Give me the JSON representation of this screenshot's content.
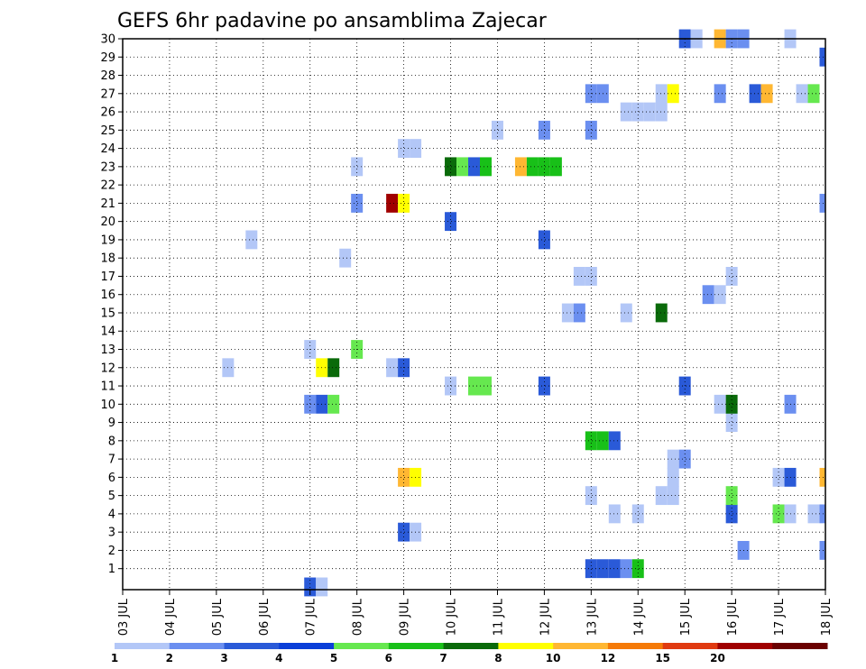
{
  "chart_data": {
    "type": "heatmap",
    "title": "GEFS 6hr padavine po ansamblima Zajecar",
    "x_tick_labels": [
      "03 JUL",
      "04 JUL",
      "05 JUL",
      "06 JUL",
      "07 JUL",
      "08 JUL",
      "09 JUL",
      "10 JUL",
      "11 JUL",
      "12 JUL",
      "13 JUL",
      "14 JUL",
      "15 JUL",
      "16 JUL",
      "17 JUL",
      "18 JUL"
    ],
    "x_range_days": [
      0,
      15
    ],
    "y_tick_labels": [
      "1",
      "2",
      "3",
      "4",
      "5",
      "6",
      "7",
      "8",
      "9",
      "10",
      "11",
      "12",
      "13",
      "14",
      "15",
      "16",
      "17",
      "18",
      "19",
      "20",
      "21",
      "22",
      "23",
      "24",
      "25",
      "26",
      "27",
      "28",
      "29",
      "30"
    ],
    "y_range": [
      0,
      30
    ],
    "grid": true,
    "colorbar": {
      "labels": [
        "1",
        "2",
        "3",
        "4",
        "5",
        "6",
        "7",
        "8",
        "10",
        "12",
        "15",
        "20"
      ],
      "colors": [
        "#b3c7f7",
        "#6b8ff0",
        "#2a5ad8",
        "#0a3ed8",
        "#66e84f",
        "#18c018",
        "#0a6a0a",
        "#ffff00",
        "#ffb732",
        "#f57a08",
        "#e03a10",
        "#a00000",
        "#6a0000"
      ]
    },
    "cells": [
      {
        "day": 4.0,
        "member": 0,
        "value": 3
      },
      {
        "day": 4.25,
        "member": 0,
        "value": 1
      },
      {
        "day": 10.0,
        "member": 1,
        "value": 3
      },
      {
        "day": 10.25,
        "member": 1,
        "value": 3
      },
      {
        "day": 10.5,
        "member": 1,
        "value": 3
      },
      {
        "day": 10.75,
        "member": 1,
        "value": 2
      },
      {
        "day": 11.0,
        "member": 1,
        "value": 6
      },
      {
        "day": 15.0,
        "member": 2,
        "value": 2
      },
      {
        "day": 13.25,
        "member": 2,
        "value": 2
      },
      {
        "day": 6.0,
        "member": 3,
        "value": 3
      },
      {
        "day": 6.25,
        "member": 3,
        "value": 1
      },
      {
        "day": 10.5,
        "member": 4,
        "value": 1
      },
      {
        "day": 11.0,
        "member": 4,
        "value": 1
      },
      {
        "day": 13.0,
        "member": 4,
        "value": 3
      },
      {
        "day": 14.0,
        "member": 4,
        "value": 5
      },
      {
        "day": 14.25,
        "member": 4,
        "value": 1
      },
      {
        "day": 14.75,
        "member": 4,
        "value": 1
      },
      {
        "day": 15.0,
        "member": 4,
        "value": 2
      },
      {
        "day": 10.0,
        "member": 5,
        "value": 1
      },
      {
        "day": 11.5,
        "member": 5,
        "value": 1
      },
      {
        "day": 11.75,
        "member": 5,
        "value": 1
      },
      {
        "day": 13.0,
        "member": 5,
        "value": 5
      },
      {
        "day": 6.0,
        "member": 6,
        "value": 10
      },
      {
        "day": 6.25,
        "member": 6,
        "value": 8
      },
      {
        "day": 11.75,
        "member": 6,
        "value": 1
      },
      {
        "day": 14.0,
        "member": 6,
        "value": 1
      },
      {
        "day": 14.25,
        "member": 6,
        "value": 3
      },
      {
        "day": 15.0,
        "member": 6,
        "value": 10
      },
      {
        "day": 11.75,
        "member": 7,
        "value": 1
      },
      {
        "day": 12.0,
        "member": 7,
        "value": 2
      },
      {
        "day": 10.0,
        "member": 8,
        "value": 6
      },
      {
        "day": 10.25,
        "member": 8,
        "value": 6
      },
      {
        "day": 10.5,
        "member": 8,
        "value": 3
      },
      {
        "day": 13.0,
        "member": 9,
        "value": 1
      },
      {
        "day": 4.0,
        "member": 10,
        "value": 2
      },
      {
        "day": 4.25,
        "member": 10,
        "value": 3
      },
      {
        "day": 4.5,
        "member": 10,
        "value": 5
      },
      {
        "day": 12.75,
        "member": 10,
        "value": 1
      },
      {
        "day": 13.0,
        "member": 10,
        "value": 7
      },
      {
        "day": 14.25,
        "member": 10,
        "value": 2
      },
      {
        "day": 7.0,
        "member": 11,
        "value": 1
      },
      {
        "day": 7.5,
        "member": 11,
        "value": 5
      },
      {
        "day": 7.75,
        "member": 11,
        "value": 5
      },
      {
        "day": 9.0,
        "member": 11,
        "value": 3
      },
      {
        "day": 12.0,
        "member": 11,
        "value": 3
      },
      {
        "day": 2.25,
        "member": 12,
        "value": 1
      },
      {
        "day": 4.25,
        "member": 12,
        "value": 8
      },
      {
        "day": 4.5,
        "member": 12,
        "value": 7
      },
      {
        "day": 5.75,
        "member": 12,
        "value": 1
      },
      {
        "day": 6.0,
        "member": 12,
        "value": 3
      },
      {
        "day": 4.0,
        "member": 13,
        "value": 1
      },
      {
        "day": 5.0,
        "member": 13,
        "value": 5
      },
      {
        "day": 9.5,
        "member": 15,
        "value": 1
      },
      {
        "day": 9.75,
        "member": 15,
        "value": 2
      },
      {
        "day": 10.75,
        "member": 15,
        "value": 1
      },
      {
        "day": 11.5,
        "member": 15,
        "value": 7
      },
      {
        "day": 12.5,
        "member": 16,
        "value": 2
      },
      {
        "day": 12.75,
        "member": 16,
        "value": 1
      },
      {
        "day": 9.75,
        "member": 17,
        "value": 1
      },
      {
        "day": 10.0,
        "member": 17,
        "value": 1
      },
      {
        "day": 13.0,
        "member": 17,
        "value": 1
      },
      {
        "day": 4.75,
        "member": 18,
        "value": 1
      },
      {
        "day": 2.75,
        "member": 19,
        "value": 1
      },
      {
        "day": 9.0,
        "member": 19,
        "value": 3
      },
      {
        "day": 7.0,
        "member": 20,
        "value": 3
      },
      {
        "day": 5.0,
        "member": 21,
        "value": 2
      },
      {
        "day": 5.75,
        "member": 21,
        "value": 20
      },
      {
        "day": 6.0,
        "member": 21,
        "value": 8
      },
      {
        "day": 15.0,
        "member": 21,
        "value": 2
      },
      {
        "day": 5.0,
        "member": 23,
        "value": 1
      },
      {
        "day": 7.0,
        "member": 23,
        "value": 7
      },
      {
        "day": 7.25,
        "member": 23,
        "value": 5
      },
      {
        "day": 7.5,
        "member": 23,
        "value": 3
      },
      {
        "day": 7.75,
        "member": 23,
        "value": 6
      },
      {
        "day": 8.5,
        "member": 23,
        "value": 10
      },
      {
        "day": 8.75,
        "member": 23,
        "value": 6
      },
      {
        "day": 9.0,
        "member": 23,
        "value": 6
      },
      {
        "day": 9.25,
        "member": 23,
        "value": 6
      },
      {
        "day": 6.0,
        "member": 24,
        "value": 1
      },
      {
        "day": 6.25,
        "member": 24,
        "value": 1
      },
      {
        "day": 8.0,
        "member": 25,
        "value": 1
      },
      {
        "day": 9.0,
        "member": 25,
        "value": 2
      },
      {
        "day": 10.0,
        "member": 25,
        "value": 2
      },
      {
        "day": 10.75,
        "member": 26,
        "value": 1
      },
      {
        "day": 11.0,
        "member": 26,
        "value": 1
      },
      {
        "day": 11.25,
        "member": 26,
        "value": 1
      },
      {
        "day": 11.5,
        "member": 26,
        "value": 1
      },
      {
        "day": 10.0,
        "member": 27,
        "value": 2
      },
      {
        "day": 10.25,
        "member": 27,
        "value": 2
      },
      {
        "day": 11.5,
        "member": 27,
        "value": 1
      },
      {
        "day": 11.75,
        "member": 27,
        "value": 8
      },
      {
        "day": 12.75,
        "member": 27,
        "value": 2
      },
      {
        "day": 13.5,
        "member": 27,
        "value": 3
      },
      {
        "day": 13.75,
        "member": 27,
        "value": 10
      },
      {
        "day": 14.5,
        "member": 27,
        "value": 1
      },
      {
        "day": 14.75,
        "member": 27,
        "value": 5
      },
      {
        "day": 15.0,
        "member": 29,
        "value": 3
      },
      {
        "day": 12.0,
        "member": 30,
        "value": 3
      },
      {
        "day": 12.25,
        "member": 30,
        "value": 1
      },
      {
        "day": 12.75,
        "member": 30,
        "value": 10
      },
      {
        "day": 13.0,
        "member": 30,
        "value": 2
      },
      {
        "day": 13.25,
        "member": 30,
        "value": 2
      },
      {
        "day": 14.25,
        "member": 30,
        "value": 1
      }
    ]
  }
}
